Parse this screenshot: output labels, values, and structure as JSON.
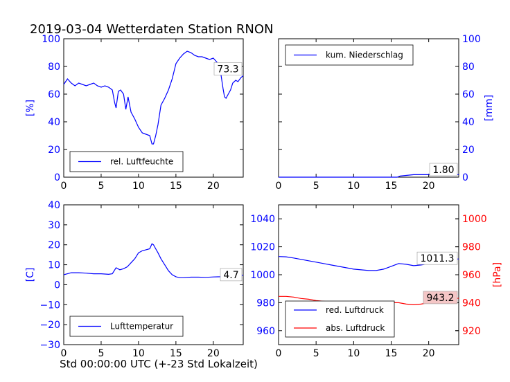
{
  "figure": {
    "title": "2019-03-04 Wetterdaten Station RNON",
    "xlabel": "Std 00:00:00 UTC (+-23 Std Lokalzeit)"
  },
  "colors": {
    "blue": "#0000ff",
    "red": "#ff0000",
    "axis": "#000000",
    "annot_bg": "#ffffff",
    "annot_bg_red": "#f4c6c6"
  },
  "chart_data": [
    {
      "id": "humidity",
      "type": "line",
      "xlim": [
        0,
        24
      ],
      "xticks": [
        0,
        5,
        10,
        15,
        20
      ],
      "ylim": [
        0,
        100
      ],
      "yticks": [
        0,
        20,
        40,
        60,
        80,
        100
      ],
      "ylabel": "[%]",
      "legend_placement": "lower-center",
      "annotation": "73.3",
      "series": [
        {
          "name": "rel. Luftfeuchte",
          "color": "#0000ff",
          "x": [
            0,
            0.5,
            1,
            1.5,
            2,
            2.5,
            3,
            3.5,
            4,
            4.5,
            5,
            5.5,
            6,
            6.5,
            6.8,
            7,
            7.3,
            7.6,
            8,
            8.3,
            8.6,
            9,
            9.5,
            10,
            10.5,
            11,
            11.5,
            11.8,
            12,
            12.3,
            12.6,
            13,
            13.5,
            14,
            14.5,
            15,
            15.5,
            16,
            16.5,
            17,
            17.5,
            18,
            18.5,
            19,
            19.5,
            20,
            20.5,
            20.8,
            21,
            21.3,
            21.5,
            21.7,
            22,
            22.3,
            22.6,
            23,
            23.3,
            23.7,
            24
          ],
          "y": [
            67,
            71,
            68,
            66,
            68,
            67,
            66,
            67,
            68,
            66,
            65,
            66,
            65,
            63,
            54,
            50,
            62,
            63,
            60,
            49,
            58,
            47,
            42,
            36,
            32,
            31,
            30,
            24,
            24,
            30,
            38,
            52,
            57,
            63,
            71,
            82,
            86,
            89,
            91,
            90,
            88,
            87,
            87,
            86,
            85,
            86,
            83,
            76,
            75,
            64,
            58,
            57,
            60,
            63,
            68,
            70,
            69,
            72,
            73.3
          ]
        }
      ]
    },
    {
      "id": "precipitation",
      "type": "line",
      "xlim": [
        0,
        24
      ],
      "xticks": [
        0,
        5,
        10,
        15,
        20
      ],
      "ylim": [
        0,
        100
      ],
      "yticks": [
        0,
        20,
        40,
        60,
        80,
        100
      ],
      "ylabel": "[mm]",
      "y_axis_side": "right",
      "legend_placement": "top-left",
      "annotation": "1.80",
      "series": [
        {
          "name": "kum. Niederschlag",
          "color": "#0000ff",
          "x": [
            0,
            15.8,
            16.2,
            18,
            24
          ],
          "y": [
            0,
            0,
            0.8,
            1.8,
            1.8
          ]
        }
      ]
    },
    {
      "id": "temperature",
      "type": "line",
      "xlim": [
        0,
        24
      ],
      "xticks": [
        0,
        5,
        10,
        15,
        20
      ],
      "ylim": [
        -30,
        40
      ],
      "yticks": [
        -30,
        -20,
        -10,
        0,
        10,
        20,
        30,
        40
      ],
      "ylabel": "[C]",
      "legend_placement": "lower-center",
      "annotation": "4.7",
      "series": [
        {
          "name": "Lufttemperatur",
          "color": "#0000ff",
          "x": [
            0,
            0.5,
            1,
            2,
            3,
            4,
            5,
            6,
            6.5,
            7,
            7.5,
            8,
            8.5,
            9,
            9.5,
            10,
            10.5,
            11,
            11.5,
            11.8,
            12,
            12.3,
            12.6,
            13,
            13.5,
            14,
            14.5,
            15,
            15.5,
            16,
            17,
            18,
            19,
            20,
            21,
            21.5,
            22,
            22.5,
            23,
            23.5,
            24
          ],
          "y": [
            5,
            5.5,
            6,
            6,
            5.8,
            5.5,
            5.5,
            5.2,
            5.5,
            8.5,
            7.5,
            8,
            9,
            11,
            13,
            16,
            17,
            17.5,
            18,
            20.5,
            20,
            18,
            16,
            13,
            10,
            7,
            5,
            4,
            3.5,
            3.5,
            3.8,
            3.8,
            3.7,
            3.9,
            4,
            5,
            6,
            6.5,
            5.5,
            5,
            4.7
          ]
        }
      ]
    },
    {
      "id": "pressure",
      "type": "line",
      "xlim": [
        0,
        24
      ],
      "xticks": [
        0,
        5,
        10,
        15,
        20
      ],
      "ylim": [
        950,
        1050
      ],
      "yticks": [
        960,
        980,
        1000,
        1020,
        1040
      ],
      "y2lim": [
        910,
        1010
      ],
      "y2ticks": [
        920,
        940,
        960,
        980,
        1000
      ],
      "y2label": "[hPa]",
      "legend_placement": "lower-center",
      "annotations": [
        "1011.3",
        "943.2"
      ],
      "series": [
        {
          "name": "red. Luftdruck",
          "color": "#0000ff",
          "axis": "left",
          "x": [
            0,
            1,
            2,
            3,
            4,
            5,
            6,
            7,
            8,
            9,
            10,
            11,
            12,
            13,
            14,
            15,
            16,
            17,
            18,
            19,
            20,
            21,
            22,
            23,
            24
          ],
          "y": [
            1013,
            1012.8,
            1012,
            1011,
            1010,
            1009,
            1008,
            1007,
            1006,
            1005,
            1004,
            1003.5,
            1003,
            1003,
            1004,
            1006,
            1008,
            1007.5,
            1006.5,
            1007,
            1008,
            1009,
            1010,
            1011,
            1011.3
          ]
        },
        {
          "name": "abs. Luftdruck",
          "color": "#ff0000",
          "axis": "right",
          "x": [
            0,
            1,
            2,
            3,
            4,
            5,
            6,
            7,
            8,
            9,
            10,
            11,
            12,
            13,
            14,
            15,
            16,
            17,
            18,
            19,
            20,
            21,
            22,
            23,
            24
          ],
          "y": [
            944.5,
            944.5,
            944,
            943,
            942.5,
            941.5,
            941,
            940.5,
            939.5,
            939,
            938.5,
            938.5,
            938.5,
            939,
            940,
            940,
            940,
            939,
            938.5,
            939,
            940,
            941,
            942,
            942.5,
            943.2
          ]
        }
      ]
    }
  ]
}
